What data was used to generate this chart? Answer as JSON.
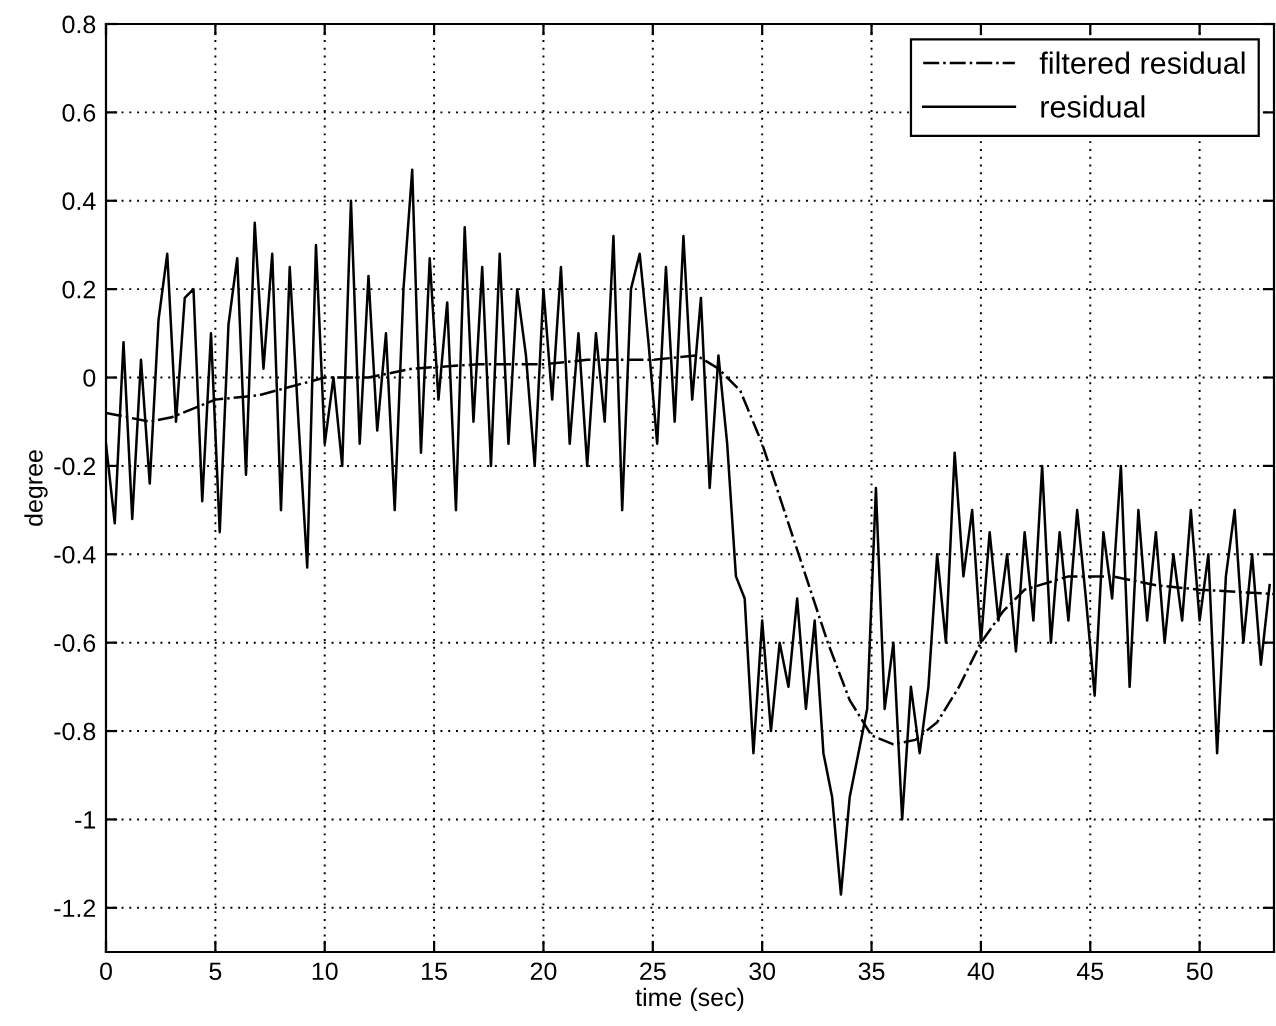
{
  "chart_data": {
    "type": "line",
    "xlabel": "time (sec)",
    "ylabel": "degree",
    "xlim": [
      0,
      53.4
    ],
    "ylim": [
      -1.3,
      0.8
    ],
    "xticks": [
      0,
      5,
      10,
      15,
      20,
      25,
      30,
      35,
      40,
      45,
      50
    ],
    "yticks": [
      -1.2,
      -1,
      -0.8,
      -0.6,
      -0.4,
      -0.2,
      0,
      0.2,
      0.4,
      0.6,
      0.8
    ],
    "grid": true,
    "legend": "top right",
    "series": [
      {
        "name": "filtered residual",
        "color": "#000000",
        "line_style": "dashdot",
        "x": [
          0,
          2,
          3,
          5,
          7,
          10,
          12,
          14,
          17,
          20,
          22,
          25,
          27,
          28,
          29,
          30,
          31,
          32,
          33,
          34,
          35,
          36,
          37,
          38,
          39,
          40,
          41,
          42,
          44,
          46,
          48,
          50,
          53.4
        ],
        "values": [
          -0.08,
          -0.1,
          -0.09,
          -0.05,
          -0.04,
          0.0,
          0.0,
          0.02,
          0.03,
          0.03,
          0.04,
          0.04,
          0.05,
          0.02,
          -0.03,
          -0.15,
          -0.3,
          -0.45,
          -0.6,
          -0.73,
          -0.81,
          -0.83,
          -0.82,
          -0.78,
          -0.7,
          -0.6,
          -0.53,
          -0.48,
          -0.45,
          -0.45,
          -0.47,
          -0.48,
          -0.49
        ]
      },
      {
        "name": "residual",
        "color": "#000000",
        "line_style": "solid",
        "x": [
          0.0,
          0.4,
          0.8,
          1.2,
          1.6,
          2.0,
          2.4,
          2.8,
          3.2,
          3.6,
          4.0,
          4.4,
          4.8,
          5.2,
          5.6,
          6.0,
          6.4,
          6.8,
          7.2,
          7.6,
          8.0,
          8.4,
          8.8,
          9.2,
          9.6,
          10.0,
          10.4,
          10.8,
          11.2,
          11.6,
          12.0,
          12.4,
          12.8,
          13.2,
          13.6,
          14.0,
          14.4,
          14.8,
          15.2,
          15.6,
          16.0,
          16.4,
          16.8,
          17.2,
          17.6,
          18.0,
          18.4,
          18.8,
          19.2,
          19.6,
          20.0,
          20.4,
          20.8,
          21.2,
          21.6,
          22.0,
          22.4,
          22.8,
          23.2,
          23.6,
          24.0,
          24.4,
          24.8,
          25.2,
          25.6,
          26.0,
          26.4,
          26.8,
          27.2,
          27.6,
          28.0,
          28.4,
          28.8,
          29.2,
          29.6,
          30.0,
          30.4,
          30.8,
          31.2,
          31.6,
          32.0,
          32.4,
          32.8,
          33.2,
          33.6,
          34.0,
          34.4,
          34.8,
          35.2,
          35.6,
          36.0,
          36.4,
          36.8,
          37.2,
          37.6,
          38.0,
          38.4,
          38.8,
          39.2,
          39.6,
          40.0,
          40.4,
          40.8,
          41.2,
          41.6,
          42.0,
          42.4,
          42.8,
          43.2,
          43.6,
          44.0,
          44.4,
          44.8,
          45.2,
          45.6,
          46.0,
          46.4,
          46.8,
          47.2,
          47.6,
          48.0,
          48.4,
          48.8,
          49.2,
          49.6,
          50.0,
          50.4,
          50.8,
          51.2,
          51.6,
          52.0,
          52.4,
          52.8,
          53.2
        ],
        "values": [
          -0.15,
          -0.33,
          0.08,
          -0.32,
          0.04,
          -0.24,
          0.13,
          0.28,
          -0.1,
          0.18,
          0.2,
          -0.28,
          0.1,
          -0.35,
          0.12,
          0.27,
          -0.22,
          0.35,
          0.02,
          0.28,
          -0.3,
          0.25,
          -0.1,
          -0.43,
          0.3,
          -0.15,
          0.0,
          -0.2,
          0.4,
          -0.15,
          0.23,
          -0.12,
          0.1,
          -0.3,
          0.2,
          0.47,
          -0.17,
          0.27,
          -0.05,
          0.17,
          -0.3,
          0.34,
          -0.1,
          0.25,
          -0.2,
          0.28,
          -0.15,
          0.2,
          0.05,
          -0.2,
          0.2,
          -0.05,
          0.25,
          -0.15,
          0.1,
          -0.2,
          0.1,
          -0.1,
          0.32,
          -0.3,
          0.2,
          0.28,
          0.08,
          -0.15,
          0.25,
          -0.1,
          0.32,
          -0.05,
          0.18,
          -0.25,
          0.05,
          -0.15,
          -0.45,
          -0.5,
          -0.85,
          -0.55,
          -0.8,
          -0.6,
          -0.7,
          -0.5,
          -0.75,
          -0.55,
          -0.85,
          -0.95,
          -1.17,
          -0.95,
          -0.85,
          -0.75,
          -0.25,
          -0.75,
          -0.6,
          -1.0,
          -0.7,
          -0.85,
          -0.7,
          -0.4,
          -0.6,
          -0.17,
          -0.45,
          -0.3,
          -0.6,
          -0.35,
          -0.55,
          -0.4,
          -0.62,
          -0.35,
          -0.55,
          -0.2,
          -0.6,
          -0.35,
          -0.55,
          -0.3,
          -0.5,
          -0.72,
          -0.35,
          -0.5,
          -0.2,
          -0.7,
          -0.3,
          -0.55,
          -0.35,
          -0.6,
          -0.4,
          -0.55,
          -0.3,
          -0.55,
          -0.4,
          -0.85,
          -0.45,
          -0.3,
          -0.6,
          -0.4,
          -0.65,
          -0.47
        ]
      }
    ]
  }
}
